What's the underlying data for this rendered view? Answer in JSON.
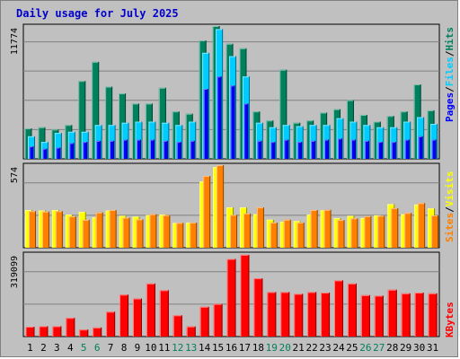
{
  "title": "Daily usage for July 2025",
  "chart_data": [
    {
      "type": "bar",
      "panel": "hits-files-pages",
      "scale_label": "11774",
      "ylim": [
        0,
        11774
      ],
      "categories": [
        "1",
        "2",
        "3",
        "4",
        "5",
        "6",
        "7",
        "8",
        "9",
        "10",
        "11",
        "12",
        "13",
        "14",
        "15",
        "16",
        "17",
        "18",
        "19",
        "20",
        "21",
        "22",
        "23",
        "24",
        "25",
        "26",
        "27",
        "28",
        "29",
        "30",
        "31"
      ],
      "weekend_days": [
        "5",
        "6",
        "12",
        "13",
        "19",
        "20",
        "26",
        "27"
      ],
      "series": [
        {
          "name": "Hits",
          "color": "#00805c",
          "values": [
            2700,
            2800,
            2600,
            3000,
            6900,
            8600,
            6400,
            5800,
            4900,
            4900,
            6300,
            4200,
            4000,
            10500,
            11774,
            10200,
            9800,
            4200,
            3400,
            7900,
            3200,
            3400,
            4100,
            4400,
            5200,
            3900,
            3300,
            3800,
            4200,
            6600,
            4300
          ]
        },
        {
          "name": "Files",
          "color": "#00ccff",
          "values": [
            2000,
            1500,
            2300,
            2400,
            2400,
            3000,
            3000,
            3200,
            3300,
            3300,
            3200,
            3000,
            3300,
            9400,
            11500,
            9100,
            7300,
            3200,
            2800,
            3000,
            2900,
            3000,
            3000,
            3600,
            3300,
            3000,
            2800,
            2800,
            3300,
            3700,
            3100
          ]
        },
        {
          "name": "Pages",
          "color": "#0000ff",
          "values": [
            1100,
            900,
            1000,
            1400,
            1500,
            1600,
            1600,
            1700,
            1700,
            1700,
            1600,
            1500,
            1600,
            6200,
            7300,
            6500,
            4900,
            1600,
            1500,
            1700,
            1500,
            1600,
            1700,
            1800,
            1700,
            1600,
            1500,
            1500,
            1700,
            2000,
            1700
          ]
        }
      ]
    },
    {
      "type": "bar",
      "panel": "visits-sites",
      "scale_label": "574",
      "ylim": [
        0,
        574
      ],
      "categories": [
        "1",
        "2",
        "3",
        "4",
        "5",
        "6",
        "7",
        "8",
        "9",
        "10",
        "11",
        "12",
        "13",
        "14",
        "15",
        "16",
        "17",
        "18",
        "19",
        "20",
        "21",
        "22",
        "23",
        "24",
        "25",
        "26",
        "27",
        "28",
        "29",
        "30",
        "31"
      ],
      "series": [
        {
          "name": "Visits",
          "color": "#ffff00",
          "values": [
            262,
            259,
            262,
            230,
            249,
            211,
            259,
            222,
            216,
            226,
            231,
            172,
            175,
            460,
            560,
            280,
            280,
            233,
            195,
            180,
            185,
            230,
            260,
            206,
            222,
            206,
            225,
            303,
            232,
            300,
            273
          ]
        },
        {
          "name": "Sites",
          "color": "#ff8000",
          "values": [
            254,
            251,
            254,
            218,
            194,
            245,
            262,
            209,
            197,
            233,
            226,
            173,
            175,
            499,
            574,
            228,
            238,
            280,
            175,
            195,
            175,
            262,
            263,
            193,
            204,
            219,
            222,
            275,
            242,
            310,
            225
          ]
        }
      ]
    },
    {
      "type": "bar",
      "panel": "kbytes",
      "scale_label": "319099",
      "ylim": [
        0,
        319099
      ],
      "categories": [
        "1",
        "2",
        "3",
        "4",
        "5",
        "6",
        "7",
        "8",
        "9",
        "10",
        "11",
        "12",
        "13",
        "14",
        "15",
        "16",
        "17",
        "18",
        "19",
        "20",
        "21",
        "22",
        "23",
        "24",
        "25",
        "26",
        "27",
        "28",
        "29",
        "30",
        "31"
      ],
      "series": [
        {
          "name": "KBytes",
          "color": "#ff0000",
          "values": [
            38000,
            40000,
            40000,
            72000,
            27000,
            35000,
            96000,
            162000,
            147000,
            205000,
            179000,
            82000,
            39000,
            115000,
            126000,
            300000,
            316000,
            225000,
            172000,
            172000,
            165000,
            172000,
            170000,
            217000,
            205000,
            160000,
            158000,
            181000,
            167000,
            170000,
            167000
          ]
        }
      ]
    }
  ],
  "legend": {
    "top": [
      {
        "label": "Hits",
        "color": "#00805c"
      },
      {
        "label": "/",
        "color": "#000000"
      },
      {
        "label": "Files",
        "color": "#00ccff"
      },
      {
        "label": "/",
        "color": "#000000"
      },
      {
        "label": "Pages",
        "color": "#0000ff"
      }
    ],
    "middle": [
      {
        "label": "Visits",
        "color": "#ffff00"
      },
      {
        "label": "/",
        "color": "#000000"
      },
      {
        "label": "Sites",
        "color": "#ff8000"
      }
    ],
    "bottom": [
      {
        "label": "KBytes",
        "color": "#ff0000"
      }
    ]
  },
  "colors": {
    "weekday_label": "#000000",
    "weekend_label": "#00805c",
    "background": "#c0c0c0",
    "grid": "#808080"
  }
}
